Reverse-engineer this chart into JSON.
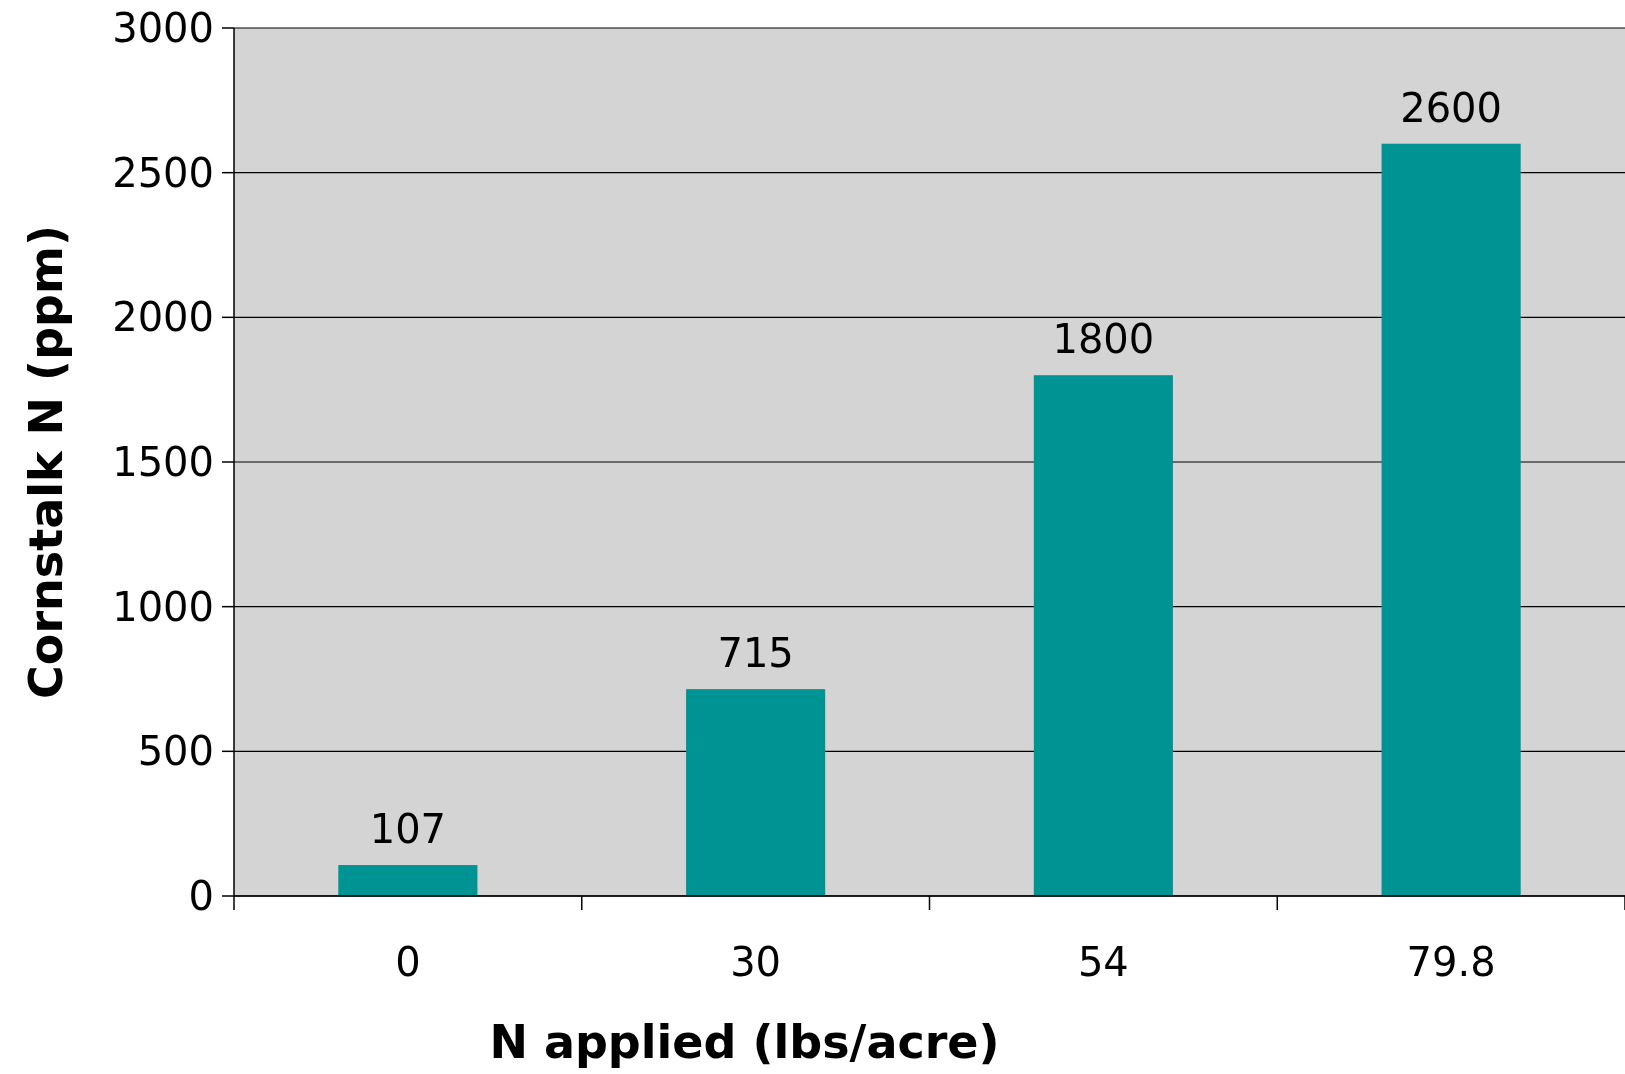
{
  "chart_data": {
    "type": "bar",
    "xlabel": "N applied (lbs/acre)",
    "ylabel": "Cornstalk N (ppm)",
    "categories": [
      "0",
      "30",
      "54",
      "79.8"
    ],
    "values": [
      107,
      715,
      1800,
      2600
    ],
    "color": "#009393",
    "ylim": [
      0,
      3000
    ],
    "yticks": [
      0,
      500,
      1000,
      1500,
      2000,
      2500,
      3000
    ],
    "grid": "y",
    "data_labels": true
  }
}
